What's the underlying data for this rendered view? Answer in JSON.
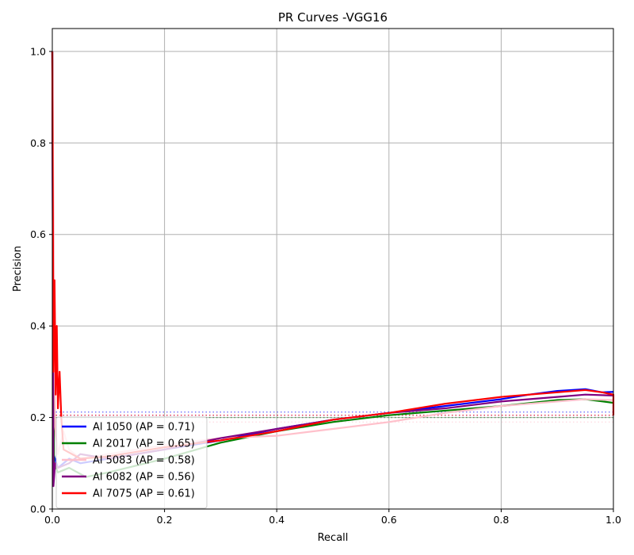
{
  "chart_data": {
    "type": "line",
    "title": "PR Curves -VGG16",
    "xlabel": "Recall",
    "ylabel": "Precision",
    "xlim": [
      0,
      1
    ],
    "ylim": [
      0,
      1.05
    ],
    "x_ticks": [
      "0.0",
      "0.2",
      "0.4",
      "0.6",
      "0.8",
      "1.0"
    ],
    "y_ticks": [
      "0.0",
      "0.2",
      "0.4",
      "0.6",
      "0.8",
      "1.0"
    ],
    "grid": true,
    "legend_position": "bottom-left",
    "series": [
      {
        "name": "Al 1050 (AP = 0.71)",
        "color": "#0000ff",
        "baseline": 0.212,
        "points": [
          [
            0.0,
            1.0
          ],
          [
            0.002,
            0.12
          ],
          [
            0.01,
            0.09
          ],
          [
            0.03,
            0.11
          ],
          [
            0.05,
            0.1
          ],
          [
            0.1,
            0.11
          ],
          [
            0.2,
            0.13
          ],
          [
            0.3,
            0.15
          ],
          [
            0.4,
            0.175
          ],
          [
            0.5,
            0.195
          ],
          [
            0.6,
            0.21
          ],
          [
            0.7,
            0.225
          ],
          [
            0.8,
            0.24
          ],
          [
            0.85,
            0.25
          ],
          [
            0.9,
            0.258
          ],
          [
            0.95,
            0.262
          ],
          [
            0.98,
            0.255
          ],
          [
            1.0,
            0.256
          ]
        ]
      },
      {
        "name": "Al 2017 (AP = 0.65)",
        "color": "#008000",
        "baseline": 0.2,
        "points": [
          [
            0.0,
            1.0
          ],
          [
            0.003,
            0.1
          ],
          [
            0.01,
            0.08
          ],
          [
            0.03,
            0.09
          ],
          [
            0.06,
            0.07
          ],
          [
            0.1,
            0.08
          ],
          [
            0.2,
            0.11
          ],
          [
            0.3,
            0.145
          ],
          [
            0.4,
            0.17
          ],
          [
            0.5,
            0.19
          ],
          [
            0.6,
            0.205
          ],
          [
            0.7,
            0.215
          ],
          [
            0.8,
            0.225
          ],
          [
            0.9,
            0.238
          ],
          [
            0.95,
            0.24
          ],
          [
            1.0,
            0.232
          ]
        ]
      },
      {
        "name": "Al 5083 (AP = 0.58)",
        "color": "#ffc0cb",
        "baseline": 0.19,
        "points": [
          [
            0.0,
            1.0
          ],
          [
            0.005,
            0.18
          ],
          [
            0.01,
            0.12
          ],
          [
            0.02,
            0.17
          ],
          [
            0.03,
            0.13
          ],
          [
            0.05,
            0.11
          ],
          [
            0.1,
            0.12
          ],
          [
            0.2,
            0.14
          ],
          [
            0.3,
            0.155
          ],
          [
            0.4,
            0.16
          ],
          [
            0.5,
            0.175
          ],
          [
            0.6,
            0.19
          ],
          [
            0.7,
            0.21
          ],
          [
            0.8,
            0.225
          ],
          [
            0.9,
            0.235
          ],
          [
            0.95,
            0.24
          ],
          [
            1.0,
            0.238
          ]
        ]
      },
      {
        "name": "Al 6082 (AP = 0.56)",
        "color": "#800080",
        "baseline": 0.205,
        "points": [
          [
            0.0,
            1.0
          ],
          [
            0.002,
            0.05
          ],
          [
            0.005,
            0.1
          ],
          [
            0.01,
            0.09
          ],
          [
            0.03,
            0.1
          ],
          [
            0.05,
            0.12
          ],
          [
            0.1,
            0.11
          ],
          [
            0.2,
            0.13
          ],
          [
            0.3,
            0.155
          ],
          [
            0.4,
            0.175
          ],
          [
            0.5,
            0.195
          ],
          [
            0.6,
            0.21
          ],
          [
            0.7,
            0.22
          ],
          [
            0.8,
            0.235
          ],
          [
            0.9,
            0.245
          ],
          [
            0.95,
            0.25
          ],
          [
            1.0,
            0.248
          ]
        ]
      },
      {
        "name": "Al 7075 (AP = 0.61)",
        "color": "#ff0000",
        "baseline": 0.205,
        "points": [
          [
            0.0,
            1.0
          ],
          [
            0.002,
            0.3
          ],
          [
            0.004,
            0.5
          ],
          [
            0.006,
            0.25
          ],
          [
            0.008,
            0.4
          ],
          [
            0.01,
            0.22
          ],
          [
            0.013,
            0.3
          ],
          [
            0.016,
            0.2
          ],
          [
            0.02,
            0.13
          ],
          [
            0.05,
            0.11
          ],
          [
            0.1,
            0.115
          ],
          [
            0.2,
            0.135
          ],
          [
            0.3,
            0.15
          ],
          [
            0.4,
            0.17
          ],
          [
            0.5,
            0.195
          ],
          [
            0.6,
            0.21
          ],
          [
            0.7,
            0.23
          ],
          [
            0.8,
            0.245
          ],
          [
            0.9,
            0.255
          ],
          [
            0.95,
            0.26
          ],
          [
            0.98,
            0.255
          ],
          [
            1.0,
            0.25
          ],
          [
            1.0,
            0.205
          ]
        ]
      }
    ]
  }
}
